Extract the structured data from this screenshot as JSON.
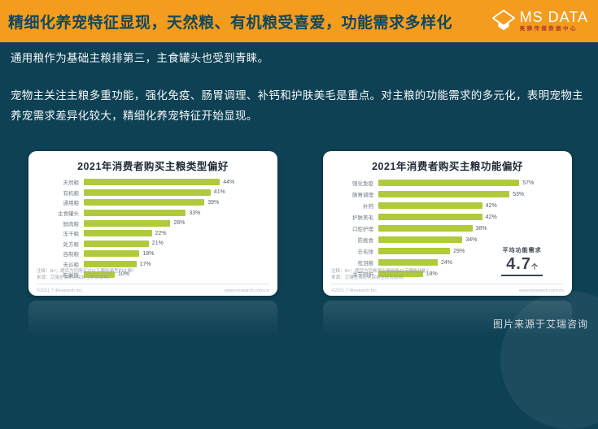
{
  "header": {
    "title": "精细化养宠特征显现，天然粮、有机粮受喜爱，功能需求多样化",
    "logo": {
      "name": "MS DATA",
      "subtitle": "美狮传媒数据中心"
    }
  },
  "body": {
    "paragraph1": "通用粮作为基础主粮排第三，主食罐头也受到青睐。",
    "paragraph2": "宠物主关注主粮多重功能，强化免疫、肠胃调理、补钙和护肤美毛是重点。对主粮的功能需求的多元化，表明宠物主养宠需求差异化较大，精细化养宠特征开始显现。"
  },
  "footer": {
    "source": "图片来源于艾瑞咨询"
  },
  "colors": {
    "banner_orange": "#F39C1E",
    "background_teal": "#0E4154",
    "bar_green": "#AFCA3B"
  },
  "chart_data": [
    {
      "type": "bar",
      "orientation": "horizontal",
      "title": "2021年消费者购买主粮类型偏好",
      "categories": [
        "天然粮",
        "有机粮",
        "通用粮",
        "主食罐头",
        "鲜肉粮",
        "冻干粮",
        "处方粮",
        "自制粮",
        "无谷粮",
        "吃剩饭"
      ],
      "values": [
        44,
        41,
        39,
        33,
        28,
        22,
        21,
        18,
        17,
        10
      ],
      "unit": "%",
      "bar_color": "#AFCA3B",
      "xlim": [
        0,
        60
      ],
      "grid": false,
      "legend": "none",
      "note_line1": "注释：N=；题目为您购买过以下哪些类型的主粮？",
      "note_line2": "来源：艾瑞咨询研究院自主研究绘制。",
      "copyright_left": "©2021.7 iResearch Inc.",
      "copyright_right": "www.iresearch.com.cn"
    },
    {
      "type": "bar",
      "orientation": "horizontal",
      "title": "2021年消费者购买主粮功能偏好",
      "categories": [
        "强化免疫",
        "肠胃调理",
        "补钙",
        "护肤美毛",
        "口腔护理",
        "防挑食",
        "去毛球",
        "祛泪痕",
        "关节呵护"
      ],
      "values": [
        57,
        53,
        42,
        42,
        38,
        34,
        29,
        24,
        18
      ],
      "unit": "%",
      "bar_color": "#AFCA3B",
      "xlim": [
        0,
        75
      ],
      "grid": false,
      "legend": "none",
      "annotation": {
        "label": "平均功能需求",
        "value": "4.7",
        "unit": "个"
      },
      "note_line1": "注释：N=；题目为您希望主粮具备以下哪些功能？",
      "note_line2": "来源：艾瑞咨询研究院自主研究绘制。",
      "copyright_left": "©2021.7 iResearch Inc.",
      "copyright_right": "www.iresearch.com.cn"
    }
  ]
}
